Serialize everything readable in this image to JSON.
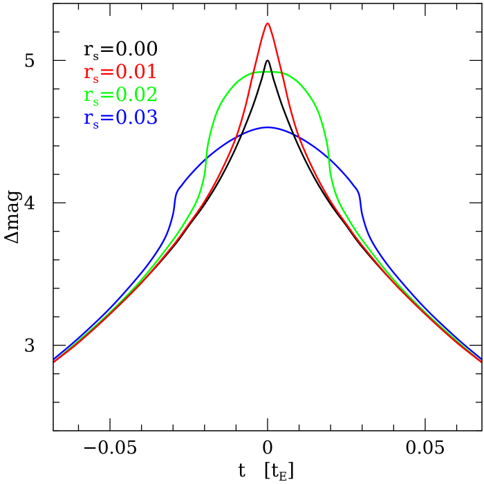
{
  "chart_data": {
    "type": "line",
    "xlabel": "t",
    "xunit": "t",
    "xunit_sub": "E",
    "ylabel": "Δmag",
    "xlim": [
      -0.068,
      0.068
    ],
    "ylim": [
      2.4,
      5.4
    ],
    "x_ticks": [
      {
        "value": -0.05,
        "label": "−0.05"
      },
      {
        "value": 0,
        "label": "0"
      },
      {
        "value": 0.05,
        "label": "0.05"
      }
    ],
    "y_ticks": [
      {
        "value": 3,
        "label": "3"
      },
      {
        "value": 4,
        "label": "4"
      },
      {
        "value": 5,
        "label": "5"
      }
    ],
    "x_minor_step": 0.01,
    "y_minor_step": 0.2,
    "legend_position": "top-left",
    "series": [
      {
        "name": "0.00",
        "rs": 0.0,
        "color": "#000000",
        "points": [
          [
            -0.068,
            2.88
          ],
          [
            -0.06,
            3.02
          ],
          [
            -0.05,
            3.22
          ],
          [
            -0.04,
            3.44
          ],
          [
            -0.03,
            3.69
          ],
          [
            -0.025,
            3.84
          ],
          [
            -0.02,
            3.99
          ],
          [
            -0.015,
            4.17
          ],
          [
            -0.01,
            4.39
          ],
          [
            -0.005,
            4.66
          ],
          [
            -0.002,
            4.86
          ],
          [
            0,
            5.0
          ],
          [
            0.002,
            4.86
          ],
          [
            0.005,
            4.66
          ],
          [
            0.01,
            4.39
          ],
          [
            0.015,
            4.17
          ],
          [
            0.02,
            3.99
          ],
          [
            0.025,
            3.84
          ],
          [
            0.03,
            3.69
          ],
          [
            0.04,
            3.44
          ],
          [
            0.05,
            3.22
          ],
          [
            0.06,
            3.02
          ],
          [
            0.068,
            2.88
          ]
        ]
      },
      {
        "name": "0.01",
        "rs": 0.01,
        "color": "#ff0000",
        "points": [
          [
            -0.068,
            2.88
          ],
          [
            -0.06,
            3.02
          ],
          [
            -0.05,
            3.22
          ],
          [
            -0.04,
            3.44
          ],
          [
            -0.03,
            3.7
          ],
          [
            -0.025,
            3.85
          ],
          [
            -0.02,
            4.01
          ],
          [
            -0.015,
            4.21
          ],
          [
            -0.01,
            4.46
          ],
          [
            -0.007,
            4.68
          ],
          [
            -0.005,
            4.87
          ],
          [
            -0.003,
            5.05
          ],
          [
            -0.0015,
            5.18
          ],
          [
            0,
            5.26
          ],
          [
            0.0015,
            5.18
          ],
          [
            0.003,
            5.05
          ],
          [
            0.005,
            4.87
          ],
          [
            0.007,
            4.68
          ],
          [
            0.01,
            4.46
          ],
          [
            0.015,
            4.21
          ],
          [
            0.02,
            4.01
          ],
          [
            0.025,
            3.85
          ],
          [
            0.03,
            3.7
          ],
          [
            0.04,
            3.44
          ],
          [
            0.05,
            3.22
          ],
          [
            0.06,
            3.02
          ],
          [
            0.068,
            2.88
          ]
        ]
      },
      {
        "name": "0.02",
        "rs": 0.02,
        "color": "#00ff00",
        "points": [
          [
            -0.068,
            2.88
          ],
          [
            -0.06,
            3.03
          ],
          [
            -0.05,
            3.23
          ],
          [
            -0.04,
            3.46
          ],
          [
            -0.03,
            3.74
          ],
          [
            -0.025,
            3.91
          ],
          [
            -0.022,
            4.04
          ],
          [
            -0.02,
            4.2
          ],
          [
            -0.019,
            4.4
          ],
          [
            -0.017,
            4.58
          ],
          [
            -0.015,
            4.69
          ],
          [
            -0.012,
            4.79
          ],
          [
            -0.009,
            4.86
          ],
          [
            -0.005,
            4.91
          ],
          [
            0,
            4.92
          ],
          [
            0.005,
            4.91
          ],
          [
            0.009,
            4.86
          ],
          [
            0.012,
            4.79
          ],
          [
            0.015,
            4.69
          ],
          [
            0.017,
            4.58
          ],
          [
            0.019,
            4.4
          ],
          [
            0.02,
            4.2
          ],
          [
            0.022,
            4.04
          ],
          [
            0.025,
            3.91
          ],
          [
            0.03,
            3.74
          ],
          [
            0.04,
            3.46
          ],
          [
            0.05,
            3.23
          ],
          [
            0.06,
            3.03
          ],
          [
            0.068,
            2.88
          ]
        ]
      },
      {
        "name": "0.03",
        "rs": 0.03,
        "color": "#0000ff",
        "points": [
          [
            -0.068,
            2.9
          ],
          [
            -0.06,
            3.05
          ],
          [
            -0.05,
            3.26
          ],
          [
            -0.04,
            3.51
          ],
          [
            -0.035,
            3.66
          ],
          [
            -0.032,
            3.78
          ],
          [
            -0.03,
            3.92
          ],
          [
            -0.029,
            4.06
          ],
          [
            -0.027,
            4.13
          ],
          [
            -0.024,
            4.21
          ],
          [
            -0.02,
            4.3
          ],
          [
            -0.015,
            4.39
          ],
          [
            -0.01,
            4.46
          ],
          [
            -0.005,
            4.51
          ],
          [
            0,
            4.53
          ],
          [
            0.005,
            4.51
          ],
          [
            0.01,
            4.46
          ],
          [
            0.015,
            4.39
          ],
          [
            0.02,
            4.3
          ],
          [
            0.024,
            4.21
          ],
          [
            0.027,
            4.13
          ],
          [
            0.029,
            4.06
          ],
          [
            0.03,
            3.92
          ],
          [
            0.032,
            3.78
          ],
          [
            0.035,
            3.66
          ],
          [
            0.04,
            3.51
          ],
          [
            0.05,
            3.26
          ],
          [
            0.06,
            3.05
          ],
          [
            0.068,
            2.9
          ]
        ]
      }
    ]
  }
}
